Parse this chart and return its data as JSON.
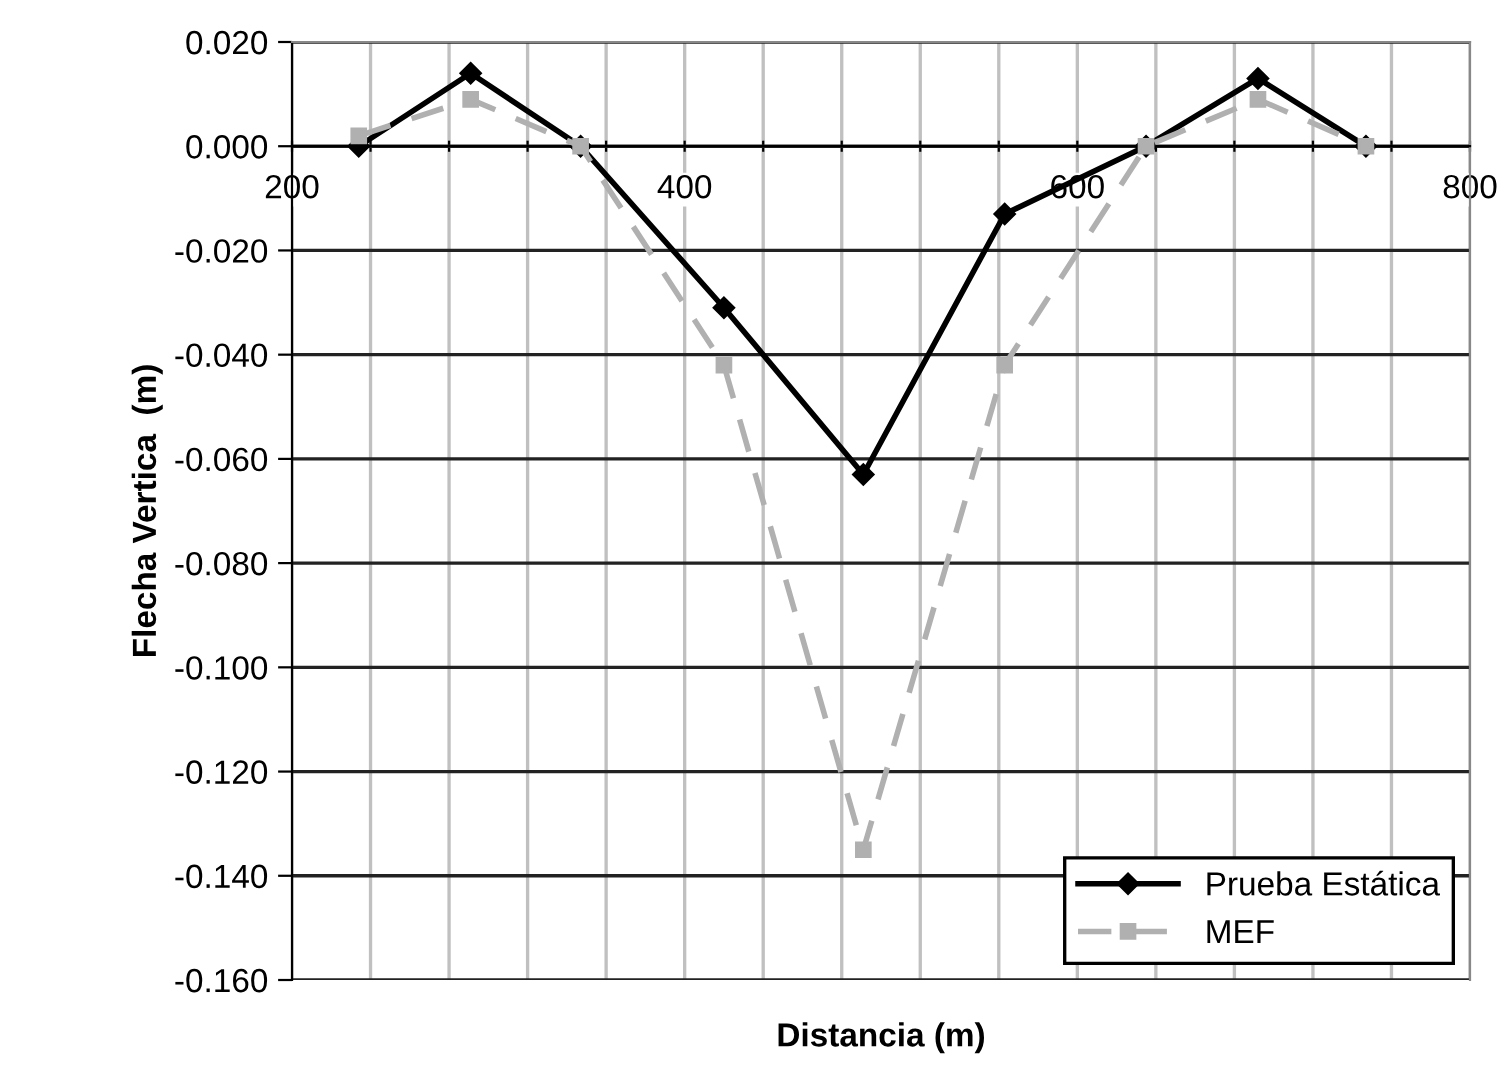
{
  "chart_data": {
    "type": "line",
    "xlabel": "Distancia (m)",
    "ylabel": "Flecha Vertica  (m)",
    "xlim": [
      200,
      800
    ],
    "xticks": [
      200,
      {
        "value": 240,
        "label": null
      },
      {
        "value": 280,
        "label": null
      },
      {
        "value": 320,
        "label": null
      },
      {
        "value": 360,
        "label": null
      },
      400,
      {
        "value": 440,
        "label": null
      },
      {
        "value": 480,
        "label": null
      },
      {
        "value": 520,
        "label": null
      },
      {
        "value": 560,
        "label": null
      },
      600,
      {
        "value": 640,
        "label": null
      },
      {
        "value": 680,
        "label": null
      },
      {
        "value": 720,
        "label": null
      },
      {
        "value": 760,
        "label": null
      },
      800
    ],
    "ylim": [
      -0.16,
      0.02
    ],
    "yticks": [
      {
        "value": 0.02,
        "label": "0.020"
      },
      {
        "value": 0.0,
        "label": "0.000"
      },
      {
        "value": -0.02,
        "label": "-0.020"
      },
      {
        "value": -0.04,
        "label": "-0.040"
      },
      {
        "value": -0.06,
        "label": "-0.060"
      },
      {
        "value": -0.08,
        "label": "-0.080"
      },
      {
        "value": -0.1,
        "label": "-0.100"
      },
      {
        "value": -0.12,
        "label": "-0.120"
      },
      {
        "value": -0.14,
        "label": "-0.140"
      },
      {
        "value": -0.16,
        "label": "-0.160"
      }
    ],
    "grid": true,
    "legend": "bottom right",
    "series": [
      {
        "name": "Prueba Estática",
        "color": "#000000",
        "marker": "diamond",
        "line_style": "solid",
        "x": [
          234,
          291,
          347,
          420,
          491,
          563,
          635,
          692,
          747
        ],
        "values": [
          0.0,
          0.014,
          0.0,
          -0.031,
          -0.063,
          -0.013,
          0.0,
          0.013,
          0.0
        ]
      },
      {
        "name": "MEF",
        "color": "#b0b0b0",
        "marker": "square",
        "line_style": "dashed",
        "x": [
          234,
          291,
          347,
          420,
          491,
          563,
          635,
          692,
          747
        ],
        "values": [
          0.002,
          0.009,
          0.0,
          -0.042,
          -0.135,
          -0.042,
          0.0,
          0.009,
          0.0
        ]
      }
    ]
  }
}
